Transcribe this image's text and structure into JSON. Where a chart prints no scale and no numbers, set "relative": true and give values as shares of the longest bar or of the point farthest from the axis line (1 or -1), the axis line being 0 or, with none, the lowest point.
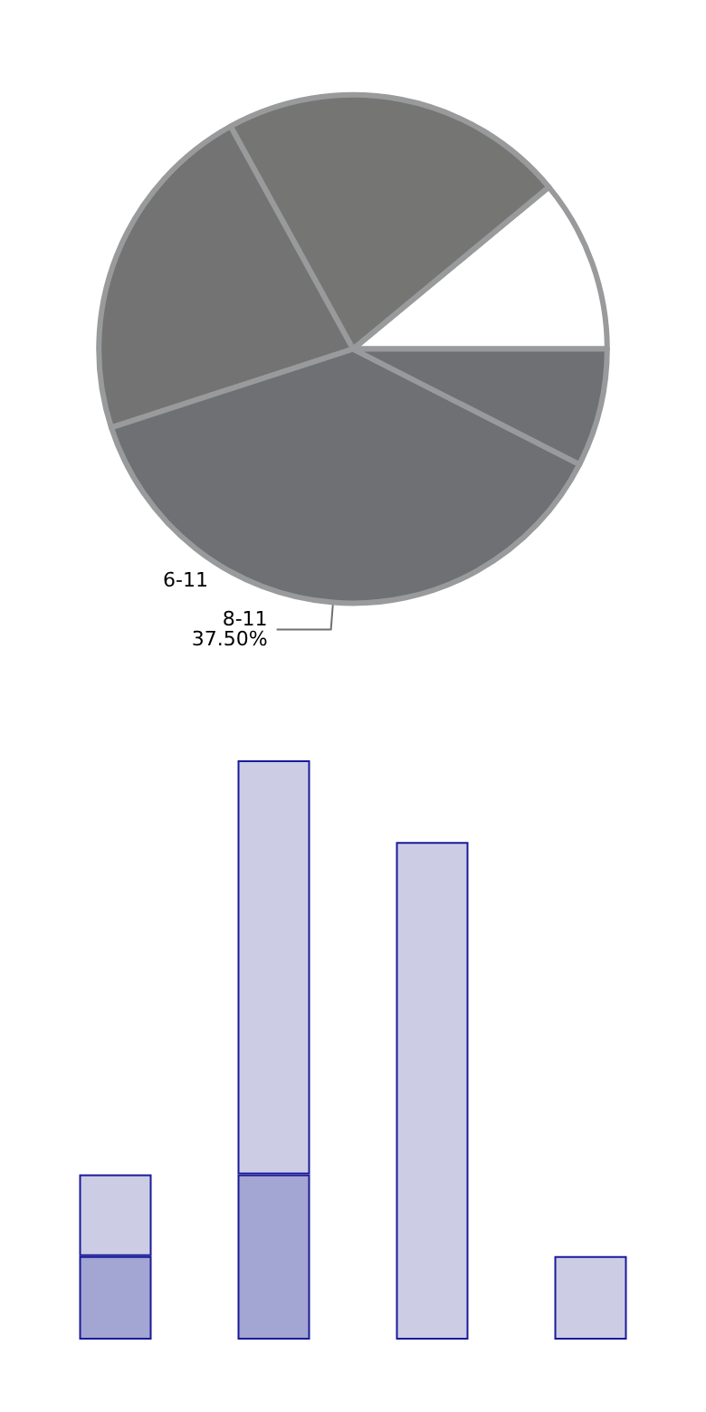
{
  "chart_data": [
    {
      "type": "pie",
      "categories": [
        null,
        null,
        null,
        "8-11",
        null
      ],
      "values": [
        11,
        22,
        22,
        37.5,
        7.5
      ],
      "value_labels": [
        null,
        null,
        null,
        "37.50%",
        null
      ],
      "colors": [
        "#ffffff",
        "#757674",
        "#737373",
        "#6e7074",
        "#6e7074"
      ],
      "annotations": [
        "6-11"
      ]
    },
    {
      "type": "bar",
      "relative": true,
      "stacked": true,
      "categories": [
        null,
        null,
        null,
        null
      ],
      "series": [
        {
          "color": "#a3a5d2",
          "values": [
            0.144,
            0.285,
            null,
            null
          ]
        },
        {
          "color": "#cccde5",
          "values": [
            0.141,
            0.715,
            0.859,
            0.144
          ]
        }
      ]
    }
  ]
}
